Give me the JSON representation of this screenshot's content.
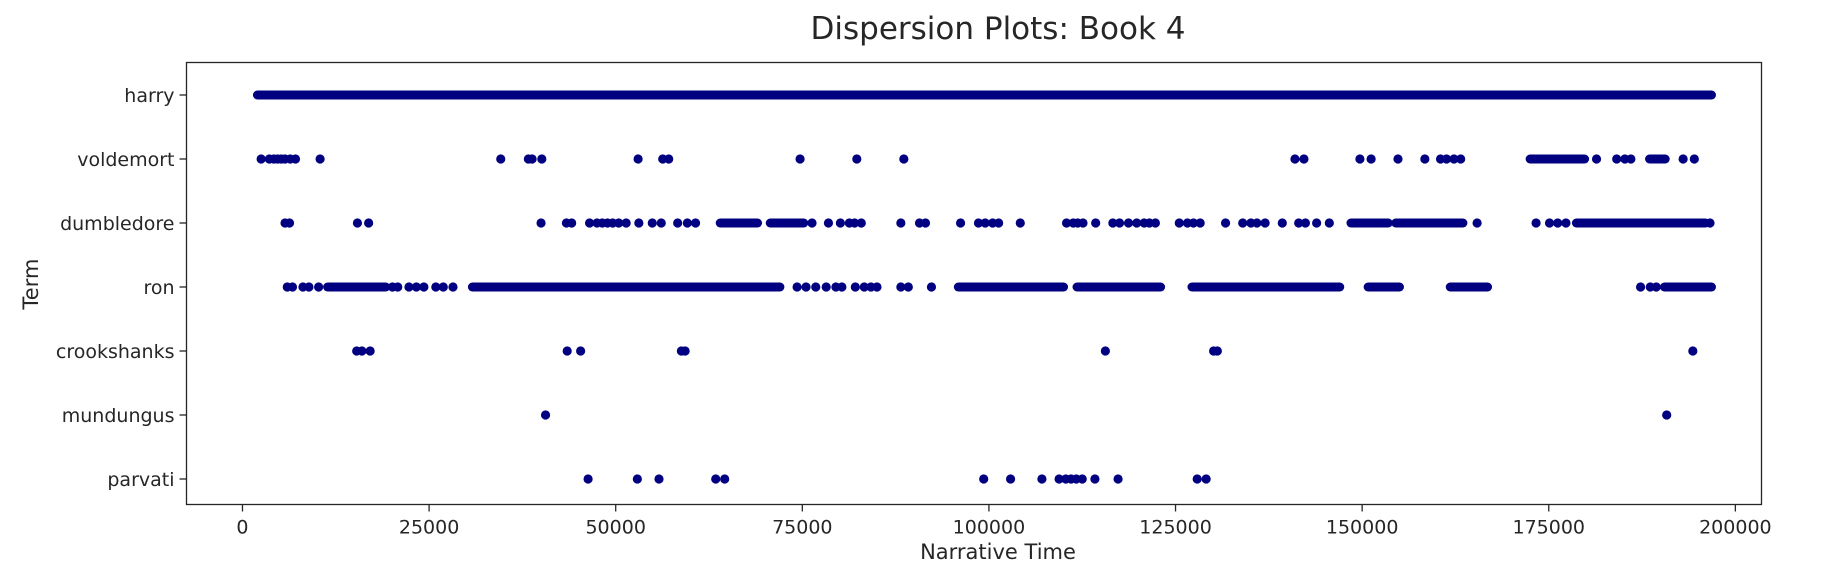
{
  "chart_data": {
    "type": "scatter",
    "title": "Dispersion Plots: Book 4",
    "xlabel": "Narrative Time",
    "ylabel": "Term",
    "xlim": [
      -7500,
      203500
    ],
    "x_ticks": [
      0,
      25000,
      50000,
      75000,
      100000,
      125000,
      150000,
      175000,
      200000
    ],
    "x_tick_labels": [
      "0",
      "25000",
      "50000",
      "75000",
      "100000",
      "125000",
      "150000",
      "175000",
      "200000"
    ],
    "categories": [
      "harry",
      "voldemort",
      "dumbledore",
      "ron",
      "crookshanks",
      "mundungus",
      "parvati"
    ],
    "grid": false,
    "legend": "none",
    "marker_color": "#000080",
    "series": [
      {
        "term": "harry",
        "spans": [
          [
            2000,
            196800
          ]
        ],
        "points": []
      },
      {
        "term": "voldemort",
        "spans": [
          [
            172500,
            179800
          ],
          [
            188500,
            190600
          ]
        ],
        "points": [
          2500,
          3600,
          4200,
          4700,
          5200,
          5700,
          6400,
          7100,
          10400,
          34600,
          38300,
          38800,
          40100,
          53000,
          56300,
          57100,
          74700,
          82300,
          88600,
          141000,
          142200,
          149700,
          151200,
          154800,
          158400,
          160500,
          161300,
          162300,
          163200,
          181400,
          184100,
          185200,
          186000,
          193000,
          194500
        ]
      },
      {
        "term": "dumbledore",
        "spans": [
          [
            64000,
            69000
          ],
          [
            70700,
            75200
          ],
          [
            148500,
            153500
          ],
          [
            154500,
            163500
          ],
          [
            178700,
            196000
          ]
        ],
        "points": [
          5700,
          6300,
          15400,
          16900,
          40000,
          43400,
          44100,
          46500,
          47500,
          48200,
          48900,
          49600,
          50400,
          51400,
          53100,
          54900,
          56100,
          58300,
          59600,
          60700,
          76300,
          78500,
          80100,
          81300,
          82000,
          82900,
          88200,
          90700,
          91500,
          96200,
          98600,
          99500,
          100500,
          101300,
          104200,
          110400,
          111300,
          111900,
          112600,
          114300,
          116600,
          117500,
          118700,
          119800,
          120800,
          121500,
          122300,
          125500,
          126600,
          127400,
          128300,
          131700,
          134000,
          135100,
          135900,
          137000,
          139300,
          141500,
          142400,
          143900,
          145600,
          165400,
          173300,
          175100,
          176200,
          177300,
          196600
        ]
      },
      {
        "term": "ron",
        "spans": [
          [
            11400,
            19200
          ],
          [
            30800,
            72000
          ],
          [
            95900,
            110000
          ],
          [
            111800,
            123000
          ],
          [
            127200,
            147000
          ],
          [
            150800,
            155000
          ],
          [
            161800,
            166800
          ],
          [
            190500,
            196800
          ]
        ],
        "points": [
          6000,
          6700,
          8100,
          8900,
          10200,
          20100,
          20800,
          22300,
          23300,
          24300,
          25900,
          26900,
          28200,
          74300,
          75500,
          76800,
          78200,
          79500,
          80300,
          82100,
          83300,
          84200,
          85000,
          88200,
          89200,
          92300,
          187300,
          188600,
          189400
        ]
      },
      {
        "term": "crookshanks",
        "spans": [],
        "points": [
          15300,
          16000,
          17100,
          43500,
          45300,
          58800,
          59300,
          115600,
          130100,
          130600,
          194300
        ]
      },
      {
        "term": "mundungus",
        "spans": [],
        "points": [
          40600,
          190800
        ]
      },
      {
        "term": "parvati",
        "spans": [],
        "points": [
          46300,
          52900,
          55800,
          63400,
          64600,
          99300,
          102900,
          107100,
          109400,
          110300,
          111000,
          111700,
          112500,
          114200,
          117300,
          127900,
          129100
        ]
      }
    ]
  }
}
